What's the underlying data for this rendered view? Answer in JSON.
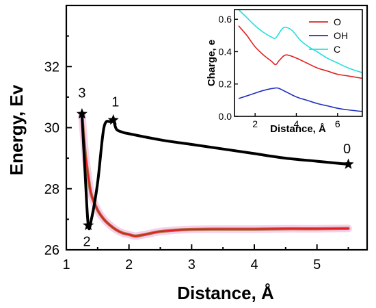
{
  "chart_data": [
    {
      "type": "line",
      "xlabel": "Distance, Å",
      "ylabel": "Energy, Ev",
      "xlim": [
        1.0,
        5.8
      ],
      "ylim": [
        26.0,
        34.0
      ],
      "xticks": [
        1,
        2,
        3,
        4,
        5
      ],
      "yticks": [
        26,
        28,
        30,
        32
      ],
      "grid": false,
      "series": [
        {
          "color": "#000000",
          "x": [
            1.25,
            1.3,
            1.35,
            1.4,
            1.5,
            1.6,
            1.7,
            1.75,
            1.8,
            1.9,
            2.0,
            2.5,
            3.0,
            3.5,
            4.0,
            4.5,
            5.0,
            5.5
          ],
          "y": [
            30.4,
            28.5,
            26.8,
            27.0,
            28.2,
            30.0,
            30.2,
            30.25,
            29.95,
            29.85,
            29.8,
            29.6,
            29.45,
            29.3,
            29.15,
            29.0,
            28.9,
            28.8
          ]
        },
        {
          "color": "#e02020",
          "halo": "#f2a8d8",
          "x": [
            1.25,
            1.3,
            1.35,
            1.4,
            1.5,
            1.6,
            1.7,
            1.8,
            1.9,
            2.0,
            2.1,
            2.2,
            2.3,
            2.5,
            2.8,
            3.0,
            3.5,
            4.0,
            4.5,
            5.0,
            5.5
          ],
          "y": [
            30.4,
            29.2,
            28.4,
            27.8,
            27.3,
            27.0,
            26.8,
            26.65,
            26.55,
            26.5,
            26.45,
            26.48,
            26.52,
            26.6,
            26.65,
            26.67,
            26.68,
            26.68,
            26.69,
            26.69,
            26.7
          ]
        }
      ],
      "points": [
        {
          "label": "3",
          "x": 1.25,
          "y": 30.45
        },
        {
          "label": "1",
          "x": 1.75,
          "y": 30.25
        },
        {
          "label": "2",
          "x": 1.35,
          "y": 26.8
        },
        {
          "label": "0",
          "x": 5.5,
          "y": 28.8
        }
      ]
    },
    {
      "type": "line",
      "xlabel": "Distance, Å",
      "ylabel": "Charge, e",
      "xlim": [
        1.0,
        7.2
      ],
      "ylim": [
        0.0,
        0.66
      ],
      "xticks": [
        2,
        4,
        6
      ],
      "yticks": [
        0.0,
        0.2,
        0.4,
        0.6
      ],
      "yticklabels": [
        "0.0",
        "0.2",
        "0.4",
        "0.6"
      ],
      "legend": "top-right",
      "series": [
        {
          "name": "O",
          "color": "#e02020",
          "x": [
            1.2,
            1.6,
            2.0,
            2.4,
            2.8,
            3.0,
            3.2,
            3.5,
            4.0,
            4.5,
            5.0,
            5.5,
            6.0,
            6.5,
            7.2
          ],
          "y": [
            0.56,
            0.5,
            0.43,
            0.38,
            0.34,
            0.32,
            0.35,
            0.38,
            0.36,
            0.33,
            0.3,
            0.28,
            0.26,
            0.25,
            0.235
          ]
        },
        {
          "name": "OH",
          "color": "#2030c0",
          "x": [
            1.2,
            1.8,
            2.4,
            3.0,
            3.2,
            3.6,
            4.0,
            4.5,
            5.0,
            5.5,
            6.0,
            6.5,
            7.2
          ],
          "y": [
            0.11,
            0.135,
            0.16,
            0.175,
            0.17,
            0.145,
            0.12,
            0.1,
            0.08,
            0.065,
            0.05,
            0.04,
            0.03
          ]
        },
        {
          "name": "C",
          "color": "#20e0e0",
          "x": [
            1.2,
            1.6,
            2.0,
            2.4,
            2.8,
            3.0,
            3.3,
            3.5,
            3.8,
            4.2,
            4.6,
            5.0,
            5.5,
            6.0,
            6.5,
            7.2
          ],
          "y": [
            0.66,
            0.61,
            0.56,
            0.52,
            0.49,
            0.485,
            0.54,
            0.55,
            0.53,
            0.47,
            0.43,
            0.4,
            0.36,
            0.33,
            0.3,
            0.27
          ]
        }
      ]
    }
  ]
}
